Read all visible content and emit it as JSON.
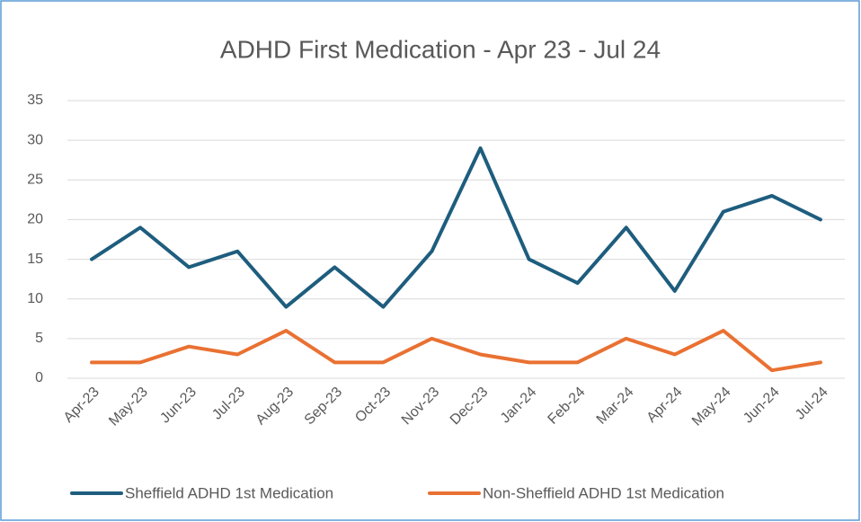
{
  "chart_data": {
    "type": "line",
    "title": "ADHD First Medication  - Apr 23 - Jul 24",
    "categories": [
      "Apr-23",
      "May-23",
      "Jun-23",
      "Jul-23",
      "Aug-23",
      "Sep-23",
      "Oct-23",
      "Nov-23",
      "Dec-23",
      "Jan-24",
      "Feb-24",
      "Mar-24",
      "Apr-24",
      "May-24",
      "Jun-24",
      "Jul-24"
    ],
    "series": [
      {
        "name": "Sheffield ADHD 1st Medication",
        "color": "#1e5d7e",
        "values": [
          15,
          19,
          14,
          16,
          9,
          14,
          9,
          16,
          29,
          15,
          12,
          19,
          11,
          21,
          23,
          20
        ]
      },
      {
        "name": "Non-Sheffield ADHD 1st Medication",
        "color": "#e97132",
        "values": [
          2,
          2,
          4,
          3,
          6,
          2,
          2,
          5,
          3,
          2,
          2,
          5,
          3,
          6,
          1,
          2
        ]
      }
    ],
    "ylim": [
      0,
      35
    ],
    "yticks": [
      0,
      5,
      10,
      15,
      20,
      25,
      30,
      35
    ],
    "grid": true,
    "legend": "bottom"
  }
}
